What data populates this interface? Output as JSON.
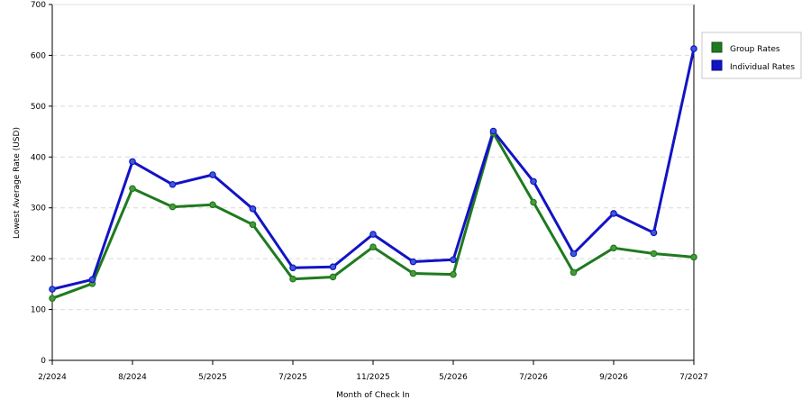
{
  "chart_data": {
    "type": "line",
    "title": "",
    "xlabel": "Month of Check In",
    "ylabel": "Lowest Average Rate (USD)",
    "ylim": [
      0,
      700
    ],
    "yticks": [
      0,
      100,
      200,
      300,
      400,
      500,
      600,
      700
    ],
    "grid": true,
    "legend_placement": "top-right",
    "x_tick_labels": [
      "2/2024",
      "8/2024",
      "5/2025",
      "7/2025",
      "11/2025",
      "5/2026",
      "7/2026",
      "9/2026",
      "7/2027"
    ],
    "x_tick_positions": [
      0,
      2,
      4,
      6,
      8,
      10,
      12,
      14,
      16
    ],
    "series": [
      {
        "name": "Group Rates",
        "color": "#1f7a1f",
        "marker_color": "#4a9a3a",
        "values": [
          122,
          151,
          338,
          302,
          306,
          267,
          160,
          164,
          223,
          171,
          169,
          447,
          311,
          173,
          221,
          210,
          203
        ]
      },
      {
        "name": "Individual Rates",
        "color": "#1313c4",
        "marker_color": "#3b5bd6",
        "values": [
          140,
          159,
          391,
          346,
          365,
          298,
          182,
          184,
          248,
          194,
          198,
          451,
          352,
          210,
          289,
          251,
          613
        ]
      }
    ]
  }
}
